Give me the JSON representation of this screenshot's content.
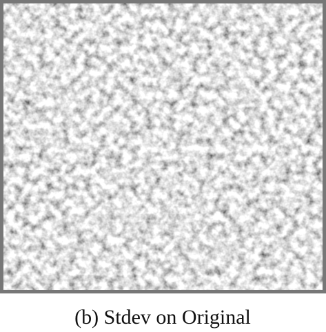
{
  "caption": "(b) Stdev on Original"
}
